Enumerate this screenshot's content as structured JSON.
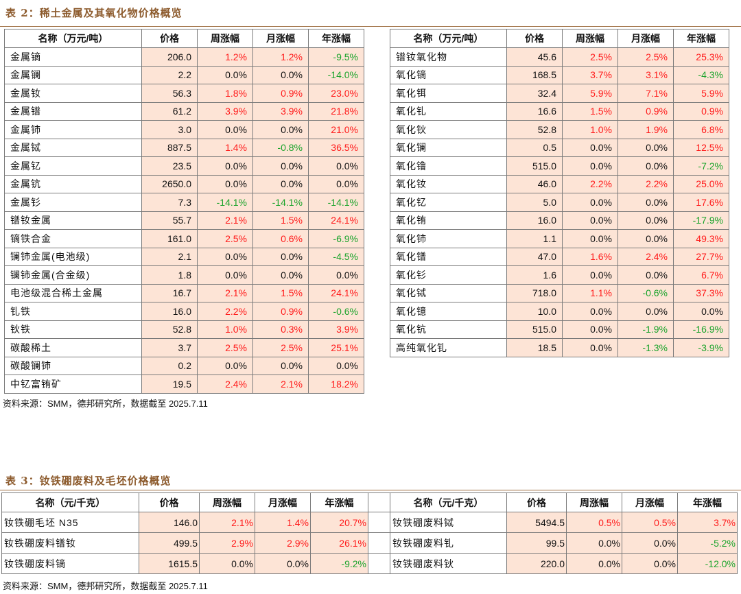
{
  "table2": {
    "title": "表 2：稀土金属及其氧化物价格概览",
    "headers": [
      "名称（万元/吨）",
      "价格",
      "周涨幅",
      "月涨幅",
      "年涨幅"
    ],
    "left_rows": [
      [
        "金属镝",
        "206.0",
        "1.2%",
        "1.2%",
        "-9.5%"
      ],
      [
        "金属镧",
        "2.2",
        "0.0%",
        "0.0%",
        "-14.0%"
      ],
      [
        "金属钕",
        "56.3",
        "1.8%",
        "0.9%",
        "23.0%"
      ],
      [
        "金属镨",
        "61.2",
        "3.9%",
        "3.9%",
        "21.8%"
      ],
      [
        "金属铈",
        "3.0",
        "0.0%",
        "0.0%",
        "21.0%"
      ],
      [
        "金属铽",
        "887.5",
        "1.4%",
        "-0.8%",
        "36.5%"
      ],
      [
        "金属钇",
        "23.5",
        "0.0%",
        "0.0%",
        "0.0%"
      ],
      [
        "金属钪",
        "2650.0",
        "0.0%",
        "0.0%",
        "0.0%"
      ],
      [
        "金属钐",
        "7.3",
        "-14.1%",
        "-14.1%",
        "-14.1%"
      ],
      [
        "镨钕金属",
        "55.7",
        "2.1%",
        "1.5%",
        "24.1%"
      ],
      [
        "镝铁合金",
        "161.0",
        "2.5%",
        "0.6%",
        "-6.9%"
      ],
      [
        "镧铈金属(电池级)",
        "2.1",
        "0.0%",
        "0.0%",
        "-4.5%"
      ],
      [
        "镧铈金属(合金级)",
        "1.8",
        "0.0%",
        "0.0%",
        "0.0%"
      ],
      [
        "电池级混合稀土金属",
        "16.7",
        "2.1%",
        "1.5%",
        "24.1%"
      ],
      [
        "钆铁",
        "16.0",
        "2.2%",
        "0.9%",
        "-0.6%"
      ],
      [
        "钬铁",
        "52.8",
        "1.0%",
        "0.3%",
        "3.9%"
      ],
      [
        "碳酸稀土",
        "3.7",
        "2.5%",
        "2.5%",
        "25.1%"
      ],
      [
        "碳酸镧铈",
        "0.2",
        "0.0%",
        "0.0%",
        "0.0%"
      ],
      [
        "中钇富铕矿",
        "19.5",
        "2.4%",
        "2.1%",
        "18.2%"
      ]
    ],
    "right_rows": [
      [
        "镨钕氧化物",
        "45.6",
        "2.5%",
        "2.5%",
        "25.3%"
      ],
      [
        "氧化镝",
        "168.5",
        "3.7%",
        "3.1%",
        "-4.3%"
      ],
      [
        "氧化铒",
        "32.4",
        "5.9%",
        "7.1%",
        "5.9%"
      ],
      [
        "氧化钆",
        "16.6",
        "1.5%",
        "0.9%",
        "0.9%"
      ],
      [
        "氧化钬",
        "52.8",
        "1.0%",
        "1.9%",
        "6.8%"
      ],
      [
        "氧化镧",
        "0.5",
        "0.0%",
        "0.0%",
        "12.5%"
      ],
      [
        "氧化镥",
        "515.0",
        "0.0%",
        "0.0%",
        "-7.2%"
      ],
      [
        "氧化钕",
        "46.0",
        "2.2%",
        "2.2%",
        "25.0%"
      ],
      [
        "氧化钇",
        "5.0",
        "0.0%",
        "0.0%",
        "17.6%"
      ],
      [
        "氧化铕",
        "16.0",
        "0.0%",
        "0.0%",
        "-17.9%"
      ],
      [
        "氧化铈",
        "1.1",
        "0.0%",
        "0.0%",
        "49.3%"
      ],
      [
        "氧化镨",
        "47.0",
        "1.6%",
        "2.4%",
        "27.7%"
      ],
      [
        "氧化钐",
        "1.6",
        "0.0%",
        "0.0%",
        "6.7%"
      ],
      [
        "氧化铽",
        "718.0",
        "1.1%",
        "-0.6%",
        "37.3%"
      ],
      [
        "氧化镱",
        "10.0",
        "0.0%",
        "0.0%",
        "0.0%"
      ],
      [
        "氧化钪",
        "515.0",
        "0.0%",
        "-1.9%",
        "-16.9%"
      ],
      [
        "高纯氧化钆",
        "18.5",
        "0.0%",
        "-1.3%",
        "-3.9%"
      ]
    ],
    "source": "资料来源：SMM，德邦研究所，数据截至 2025.7.11"
  },
  "table3": {
    "title": "表 3：钕铁硼废料及毛坯价格概览",
    "headers": [
      "名称（元/千克）",
      "价格",
      "周涨幅",
      "月涨幅",
      "年涨幅"
    ],
    "left_rows": [
      [
        "钕铁硼毛坯 N35",
        "146.0",
        "2.1%",
        "1.4%",
        "20.7%"
      ],
      [
        "钕铁硼废料镨钕",
        "499.5",
        "2.9%",
        "2.9%",
        "26.1%"
      ],
      [
        "钕铁硼废料镝",
        "1615.5",
        "0.0%",
        "0.0%",
        "-9.2%"
      ]
    ],
    "right_rows": [
      [
        "钕铁硼废料铽",
        "5494.5",
        "0.5%",
        "0.5%",
        "3.7%"
      ],
      [
        "钕铁硼废料钆",
        "99.5",
        "0.0%",
        "0.0%",
        "-5.2%"
      ],
      [
        "钕铁硼废料钬",
        "220.0",
        "0.0%",
        "0.0%",
        "-12.0%"
      ]
    ],
    "source": "资料来源：SMM，德邦研究所，数据截至 2025.7.11"
  },
  "colors": {
    "up": "#ff1a1a",
    "down": "#1aa32b",
    "cell_fill": "#fde4d6",
    "title": "#8c5a2c"
  }
}
